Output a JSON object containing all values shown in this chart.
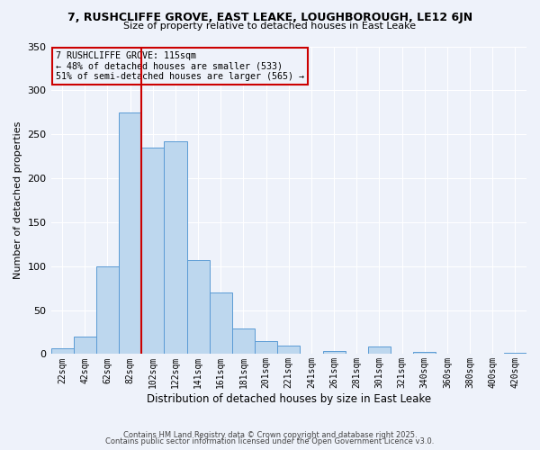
{
  "title": "7, RUSHCLIFFE GROVE, EAST LEAKE, LOUGHBOROUGH, LE12 6JN",
  "subtitle": "Size of property relative to detached houses in East Leake",
  "xlabel": "Distribution of detached houses by size in East Leake",
  "ylabel": "Number of detached properties",
  "bin_labels": [
    "22sqm",
    "42sqm",
    "62sqm",
    "82sqm",
    "102sqm",
    "122sqm",
    "141sqm",
    "161sqm",
    "181sqm",
    "201sqm",
    "221sqm",
    "241sqm",
    "261sqm",
    "281sqm",
    "301sqm",
    "321sqm",
    "340sqm",
    "360sqm",
    "380sqm",
    "400sqm",
    "420sqm"
  ],
  "bar_heights": [
    7,
    20,
    100,
    275,
    235,
    242,
    107,
    70,
    29,
    15,
    10,
    0,
    3,
    0,
    9,
    0,
    2,
    0,
    0,
    0,
    1
  ],
  "bar_color": "#bdd7ee",
  "bar_edge_color": "#5b9bd5",
  "vline_x": 4,
  "vline_color": "#cc0000",
  "ylim": [
    0,
    350
  ],
  "yticks": [
    0,
    50,
    100,
    150,
    200,
    250,
    300,
    350
  ],
  "annotation_title": "7 RUSHCLIFFE GROVE: 115sqm",
  "annotation_line2": "← 48% of detached houses are smaller (533)",
  "annotation_line3": "51% of semi-detached houses are larger (565) →",
  "annotation_box_edge_color": "#cc0000",
  "footer1": "Contains HM Land Registry data © Crown copyright and database right 2025.",
  "footer2": "Contains public sector information licensed under the Open Government Licence v3.0.",
  "background_color": "#eef2fa"
}
